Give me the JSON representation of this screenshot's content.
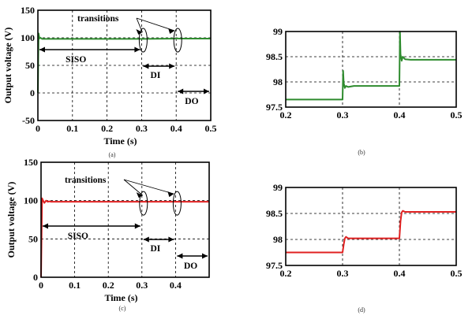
{
  "chart_data": [
    {
      "id": "a",
      "type": "line",
      "caption": "(a)",
      "xlabel": "Time  (s)",
      "ylabel": "Output voltage (V)",
      "xlim": [
        0,
        0.5
      ],
      "ylim": [
        -50,
        150
      ],
      "xticks": [
        "0",
        "0.1",
        "0.2",
        "0.3",
        "0.4",
        "0.5"
      ],
      "yticks": [
        "-50",
        "0",
        "50",
        "100",
        "150"
      ],
      "grid": true,
      "grid_x": [
        0.1,
        0.2,
        0.3,
        0.4
      ],
      "grid_y": [
        0,
        50,
        100
      ],
      "series": [
        {
          "color": "#2e8b2e",
          "x": [
            0,
            0.001,
            0.002,
            0.003,
            0.005,
            0.008,
            0.012,
            0.02,
            0.1,
            0.2,
            0.3,
            0.302,
            0.31,
            0.4,
            0.402,
            0.41,
            0.5
          ],
          "y": [
            0,
            60,
            108,
            104,
            99,
            100,
            98,
            98,
            98,
            98,
            98,
            98.2,
            98,
            98.5,
            99,
            98.5,
            98.5
          ]
        }
      ],
      "annotations": {
        "transitions": "transitions",
        "siso": "SISO",
        "di": "DI",
        "do": "DO"
      },
      "transition_points": [
        0.3,
        0.4
      ],
      "siso_range": [
        0,
        0.3
      ],
      "di_range": [
        0.3,
        0.4
      ],
      "do_range": [
        0.4,
        0.5
      ]
    },
    {
      "id": "b",
      "type": "line",
      "caption": "(b)",
      "xlim": [
        0.2,
        0.5
      ],
      "ylim": [
        97.5,
        99
      ],
      "xticks": [
        "0.2",
        "0.3",
        "0.4",
        "0.5"
      ],
      "yticks": [
        "97.5",
        "98",
        "98.5",
        "99"
      ],
      "grid": true,
      "grid_x": [
        0.3,
        0.4
      ],
      "grid_y": [
        98,
        98.5
      ],
      "series": [
        {
          "color": "#2e8b2e",
          "x": [
            0.2,
            0.3,
            0.301,
            0.302,
            0.304,
            0.306,
            0.31,
            0.32,
            0.4,
            0.401,
            0.402,
            0.404,
            0.406,
            0.41,
            0.42,
            0.5
          ],
          "y": [
            97.65,
            97.65,
            98.22,
            97.98,
            97.88,
            97.92,
            97.9,
            97.92,
            97.92,
            99.0,
            98.55,
            98.42,
            98.5,
            98.45,
            98.44,
            98.44
          ]
        }
      ]
    },
    {
      "id": "c",
      "type": "line",
      "caption": "(c)",
      "xlabel": "Time  (s)",
      "ylabel": "Output voltage (V)",
      "xlim": [
        0,
        0.5
      ],
      "ylim": [
        0,
        150
      ],
      "xticks": [
        "0",
        "0.1",
        "0.2",
        "0.3",
        "0.4"
      ],
      "yticks": [
        "0",
        "50",
        "100",
        "150"
      ],
      "grid": true,
      "grid_x": [
        0.1,
        0.2,
        0.3,
        0.4
      ],
      "grid_y": [
        50,
        100
      ],
      "series": [
        {
          "color": "#e02020",
          "x": [
            0,
            0.003,
            0.006,
            0.01,
            0.015,
            0.02,
            0.025,
            0.03,
            0.1,
            0.3,
            0.4,
            0.5
          ],
          "y": [
            0,
            103,
            100,
            97,
            100,
            98.5,
            99,
            98.5,
            98.5,
            98.5,
            98.5,
            98.5
          ]
        }
      ],
      "annotations": {
        "transitions": "transitions",
        "siso": "SISO",
        "di": "DI",
        "do": "DO"
      },
      "transition_points": [
        0.3,
        0.4
      ],
      "siso_range": [
        0,
        0.3
      ],
      "di_range": [
        0.3,
        0.4
      ],
      "do_range": [
        0.4,
        0.5
      ]
    },
    {
      "id": "d",
      "type": "line",
      "caption": "(d)",
      "xlim": [
        0.2,
        0.5
      ],
      "ylim": [
        97.5,
        99
      ],
      "xticks": [
        "0.2",
        "0.3",
        "0.4",
        "0.5"
      ],
      "yticks": [
        "97.5",
        "98",
        "98.5",
        "99"
      ],
      "grid": true,
      "grid_x": [
        0.3,
        0.4
      ],
      "grid_y": [
        98,
        98.5
      ],
      "series": [
        {
          "color": "#e02020",
          "x": [
            0.2,
            0.3,
            0.302,
            0.304,
            0.306,
            0.31,
            0.4,
            0.402,
            0.404,
            0.406,
            0.41,
            0.5
          ],
          "y": [
            97.75,
            97.75,
            97.9,
            98.02,
            98.05,
            98.02,
            98.02,
            98.35,
            98.52,
            98.55,
            98.53,
            98.53
          ]
        }
      ]
    }
  ]
}
